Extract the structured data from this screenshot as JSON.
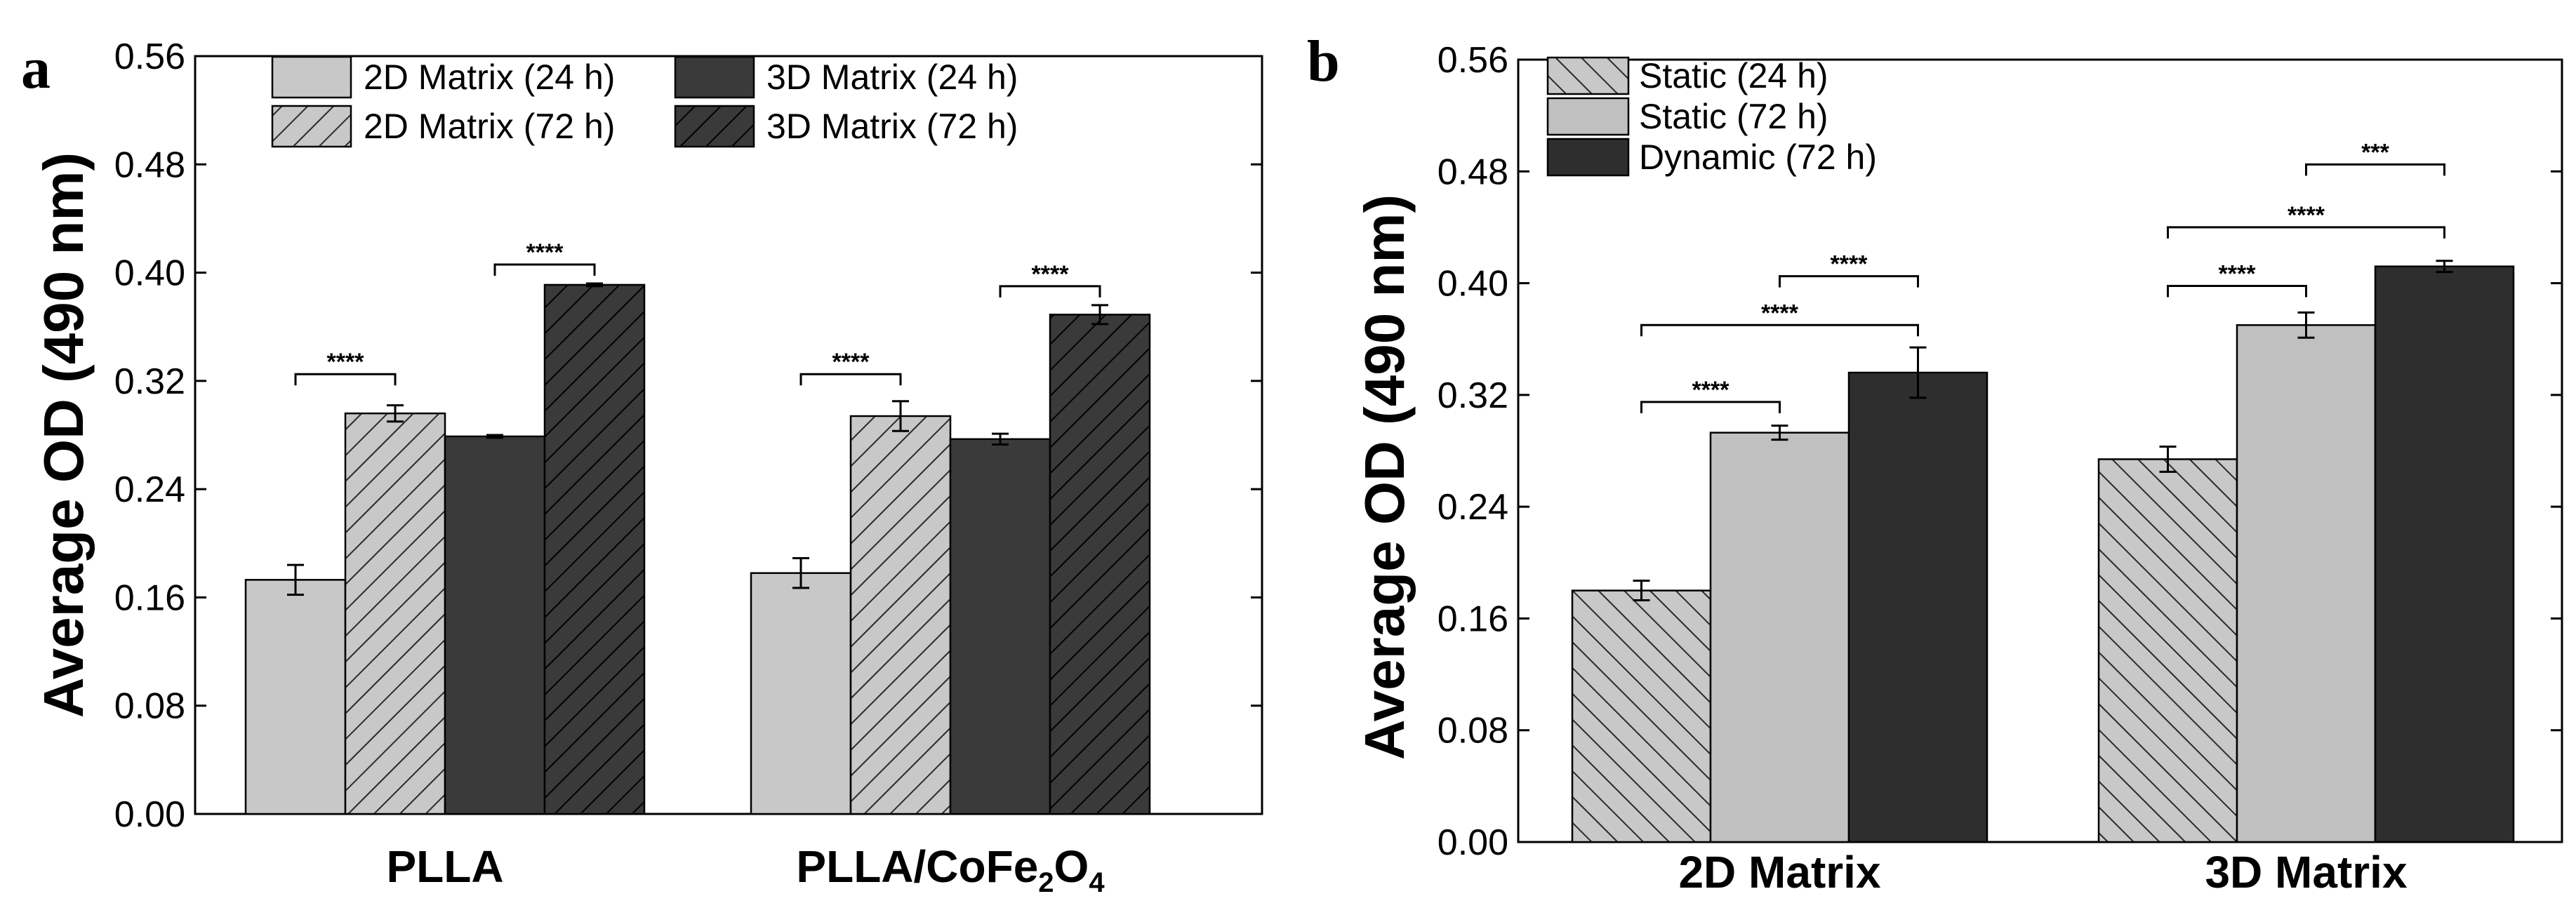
{
  "chart_data": [
    {
      "panel": "a",
      "type": "bar",
      "ylabel": "Average OD (490 nm)",
      "ylim": [
        0,
        0.56
      ],
      "yticks": [
        "0.00",
        "0.08",
        "0.16",
        "0.24",
        "0.32",
        "0.40",
        "0.48",
        "0.56"
      ],
      "categories": [
        {
          "text": "PLLA",
          "base": "",
          "sub1": "",
          "mid": "",
          "sub2": ""
        },
        {
          "text": "",
          "base": "PLLA/CoFe",
          "sub1": "2",
          "mid": "O",
          "sub2": "4"
        }
      ],
      "series": [
        {
          "name": "2D Matrix (24 h)",
          "color": "#c8c8c8",
          "pattern": "none",
          "values": [
            0.173,
            0.178
          ],
          "errors": [
            0.011,
            0.011
          ]
        },
        {
          "name": "2D Matrix (72 h)",
          "color": "#c8c8c8",
          "pattern": "hatch",
          "values": [
            0.296,
            0.294
          ],
          "errors": [
            0.006,
            0.011
          ]
        },
        {
          "name": "3D Matrix (24 h)",
          "color": "#3a3a3a",
          "pattern": "none",
          "values": [
            0.279,
            0.277
          ],
          "errors": [
            0.001,
            0.004
          ]
        },
        {
          "name": "3D Matrix (72 h)",
          "color": "#3a3a3a",
          "pattern": "hatch",
          "values": [
            0.391,
            0.369
          ],
          "errors": [
            0.001,
            0.007
          ]
        }
      ],
      "significance": [
        {
          "group": 0,
          "from": 0,
          "to": 1,
          "y": 0.325,
          "label": "****"
        },
        {
          "group": 0,
          "from": 2,
          "to": 3,
          "y": 0.406,
          "label": "****"
        },
        {
          "group": 1,
          "from": 0,
          "to": 1,
          "y": 0.325,
          "label": "****"
        },
        {
          "group": 1,
          "from": 2,
          "to": 3,
          "y": 0.39,
          "label": "****"
        }
      ],
      "legend": "top, two columns"
    },
    {
      "panel": "b",
      "type": "bar",
      "ylabel": "Average OD (490 nm)",
      "ylim": [
        0,
        0.56
      ],
      "yticks": [
        "0.00",
        "0.08",
        "0.16",
        "0.24",
        "0.32",
        "0.40",
        "0.48",
        "0.56"
      ],
      "categories": [
        {
          "text": "2D Matrix",
          "base": "",
          "sub1": "",
          "mid": "",
          "sub2": ""
        },
        {
          "text": "3D Matrix",
          "base": "",
          "sub1": "",
          "mid": "",
          "sub2": ""
        }
      ],
      "series": [
        {
          "name": "Static (24 h)",
          "color": "#c8c8c8",
          "pattern": "hatch",
          "values": [
            0.18,
            0.274
          ],
          "errors": [
            0.007,
            0.009
          ]
        },
        {
          "name": "Static (72 h)",
          "color": "#c0c0c0",
          "pattern": "none",
          "values": [
            0.293,
            0.37
          ],
          "errors": [
            0.005,
            0.009
          ]
        },
        {
          "name": "Dynamic  (72 h)",
          "color": "#2e2e2e",
          "pattern": "none",
          "values": [
            0.336,
            0.412
          ],
          "errors": [
            0.018,
            0.004
          ]
        }
      ],
      "significance": [
        {
          "group": 0,
          "from": 0,
          "to": 1,
          "y": 0.315,
          "label": "****"
        },
        {
          "group": 0,
          "from": 1,
          "to": 2,
          "y": 0.405,
          "label": "****"
        },
        {
          "group": 0,
          "from": 0,
          "to": 2,
          "y": 0.37,
          "label": "****"
        },
        {
          "group": 1,
          "from": 0,
          "to": 1,
          "y": 0.398,
          "label": "****"
        },
        {
          "group": 1,
          "from": 0,
          "to": 2,
          "y": 0.44,
          "label": "****"
        },
        {
          "group": 1,
          "from": 1,
          "to": 2,
          "y": 0.485,
          "label": "***"
        }
      ],
      "legend": "top-left"
    }
  ]
}
